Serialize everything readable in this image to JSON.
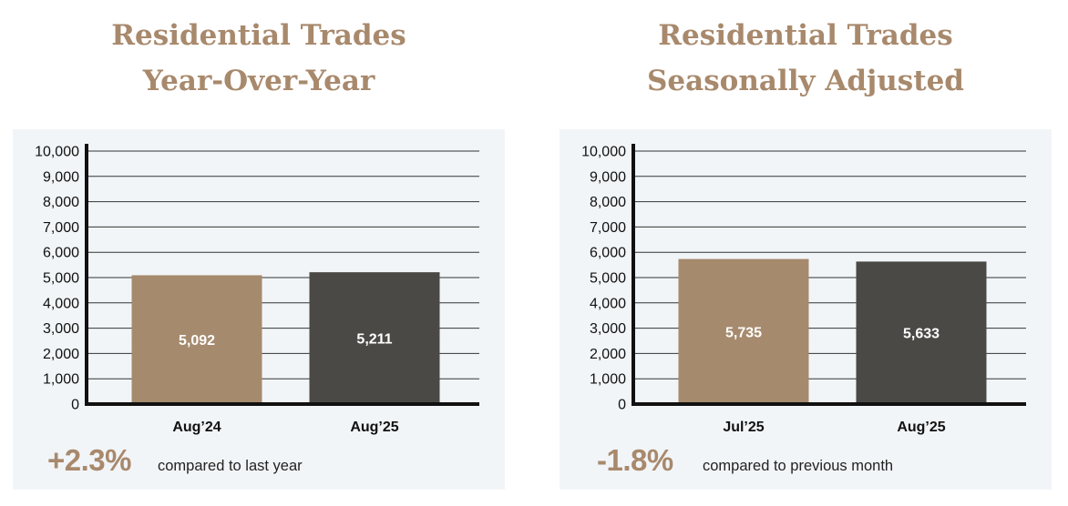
{
  "colors": {
    "bar_primary": "#a68a6d",
    "bar_secondary": "#4a4946",
    "title": "#a8896c",
    "change": "#a8896c",
    "panel_bg": "#f2f5f8",
    "axis": "#111111",
    "grid": "#333333"
  },
  "left": {
    "title_line1": "Residential Trades",
    "title_line2": "Year-Over-Year",
    "change": "+2.3%",
    "caption": "compared to last year"
  },
  "right": {
    "title_line1": "Residential Trades",
    "title_line2": "Seasonally Adjusted",
    "change": "-1.8%",
    "caption": "compared to previous month"
  },
  "chart_data": [
    {
      "type": "bar",
      "title": "Residential Trades Year-Over-Year",
      "categories": [
        "Aug’24",
        "Aug’25"
      ],
      "values": [
        5092,
        5211
      ],
      "value_labels": [
        "5,092",
        "5,211"
      ],
      "ylim": [
        0,
        10000
      ],
      "yticks": [
        0,
        1000,
        2000,
        3000,
        4000,
        5000,
        6000,
        7000,
        8000,
        9000,
        10000
      ],
      "ytick_labels": [
        "0",
        "1,000",
        "2,000",
        "3,000",
        "4,000",
        "5,000",
        "6,000",
        "7,000",
        "8,000",
        "9,000",
        "10,000"
      ],
      "grid": true
    },
    {
      "type": "bar",
      "title": "Residential Trades Seasonally Adjusted",
      "categories": [
        "Jul’25",
        "Aug’25"
      ],
      "values": [
        5735,
        5633
      ],
      "value_labels": [
        "5,735",
        "5,633"
      ],
      "ylim": [
        0,
        10000
      ],
      "yticks": [
        0,
        1000,
        2000,
        3000,
        4000,
        5000,
        6000,
        7000,
        8000,
        9000,
        10000
      ],
      "ytick_labels": [
        "0",
        "1,000",
        "2,000",
        "3,000",
        "4,000",
        "5,000",
        "6,000",
        "7,000",
        "8,000",
        "9,000",
        "10,000"
      ],
      "grid": true
    }
  ]
}
